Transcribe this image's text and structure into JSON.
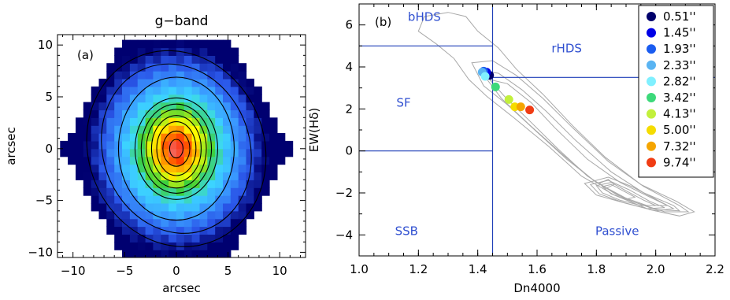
{
  "chart_data": [
    {
      "type": "heatmap",
      "panel_label": "(a)",
      "title": "g−band",
      "xlabel": "arcsec",
      "ylabel": "arcsec",
      "xlim": [
        -11.5,
        12.5
      ],
      "ylim": [
        -10.5,
        11
      ],
      "xticks": [
        -10,
        -5,
        0,
        5,
        10
      ],
      "yticks": [
        -10,
        -5,
        0,
        5,
        10
      ],
      "map": {
        "center": [
          0,
          0
        ],
        "hexagon_extent_arcsec": 10.5,
        "colormap": [
          "#ffffff",
          "#f08080",
          "#ff2a00",
          "#ff8c00",
          "#ffff00",
          "#3ccf3c",
          "#3cd9ff",
          "#3a9bff",
          "#2a55e8",
          "#000070"
        ],
        "peak_value": 1.0,
        "scale_length_arcsec": 3.6
      },
      "contours": [
        {
          "a": 0.65,
          "b": 0.9
        },
        {
          "a": 1.3,
          "b": 1.7
        },
        {
          "a": 1.9,
          "b": 2.6
        },
        {
          "a": 2.4,
          "b": 3.2
        },
        {
          "a": 2.9,
          "b": 3.8
        },
        {
          "a": 3.4,
          "b": 4.3
        },
        {
          "a": 4.0,
          "b": 4.9
        },
        {
          "a": 5.6,
          "b": 6.9
        },
        {
          "a": 7.1,
          "b": 8.3,
          "angle": -20
        },
        {
          "a": 8.5,
          "b": 9.6,
          "angle": -22
        }
      ]
    },
    {
      "type": "scatter",
      "panel_label": "(b)",
      "xlabel": "Dn4000",
      "ylabel": "EW(Hδ)",
      "xlim": [
        1.0,
        2.2
      ],
      "ylim": [
        -5,
        7
      ],
      "xticks": [
        "1.0",
        "1.2",
        "1.4",
        "1.6",
        "1.8",
        "2.0",
        "2.2"
      ],
      "yticks": [
        "−4",
        "−2",
        "0",
        "2",
        "4",
        "6"
      ],
      "region_labels": [
        {
          "text": "bHDS",
          "x": 1.22,
          "y": 6.2
        },
        {
          "text": "rHDS",
          "x": 1.7,
          "y": 4.7
        },
        {
          "text": "SF",
          "x": 1.15,
          "y": 2.1
        },
        {
          "text": "SSB",
          "x": 1.16,
          "y": -4.0
        },
        {
          "text": "Passive",
          "x": 1.87,
          "y": -4.0
        }
      ],
      "dividers": [
        {
          "x": [
            1.45,
            1.45
          ],
          "y": [
            -5,
            7
          ]
        },
        {
          "x": [
            1.0,
            1.45
          ],
          "y": [
            5.0,
            5.0
          ]
        },
        {
          "x": [
            1.45,
            2.2
          ],
          "y": [
            3.5,
            3.5
          ]
        },
        {
          "x": [
            1.0,
            1.45
          ],
          "y": [
            0.0,
            0.0
          ]
        }
      ],
      "density_contours": [
        {
          "points": [
            [
              1.22,
              6.4
            ],
            [
              1.3,
              6.6
            ],
            [
              1.36,
              6.4
            ],
            [
              1.4,
              5.7
            ],
            [
              1.47,
              4.9
            ],
            [
              1.53,
              3.9
            ],
            [
              1.62,
              2.7
            ],
            [
              1.72,
              1.2
            ],
            [
              1.83,
              -0.3
            ],
            [
              1.95,
              -1.6
            ],
            [
              2.07,
              -2.4
            ],
            [
              2.13,
              -2.9
            ],
            [
              2.08,
              -3.1
            ],
            [
              1.98,
              -2.8
            ],
            [
              1.86,
              -2.1
            ],
            [
              1.75,
              -1.2
            ],
            [
              1.64,
              0.2
            ],
            [
              1.52,
              1.6
            ],
            [
              1.43,
              2.6
            ],
            [
              1.37,
              3.4
            ],
            [
              1.32,
              4.4
            ],
            [
              1.26,
              5.1
            ],
            [
              1.2,
              5.7
            ],
            [
              1.22,
              6.4
            ]
          ]
        },
        {
          "points": [
            [
              1.38,
              4.2
            ],
            [
              1.45,
              4.3
            ],
            [
              1.53,
              3.6
            ],
            [
              1.62,
              2.5
            ],
            [
              1.72,
              1.1
            ],
            [
              1.84,
              -0.5
            ],
            [
              1.96,
              -1.7
            ],
            [
              2.08,
              -2.6
            ],
            [
              2.11,
              -2.9
            ],
            [
              2.03,
              -2.9
            ],
            [
              1.92,
              -2.4
            ],
            [
              1.8,
              -1.5
            ],
            [
              1.7,
              -0.4
            ],
            [
              1.6,
              0.9
            ],
            [
              1.5,
              2.2
            ],
            [
              1.42,
              3.1
            ],
            [
              1.38,
              4.2
            ]
          ]
        },
        {
          "points": [
            [
              1.41,
              3.8
            ],
            [
              1.47,
              3.7
            ],
            [
              1.55,
              2.9
            ],
            [
              1.63,
              1.9
            ],
            [
              1.73,
              0.5
            ],
            [
              1.85,
              -1.0
            ],
            [
              1.96,
              -2.0
            ],
            [
              2.06,
              -2.6
            ],
            [
              2.08,
              -2.85
            ],
            [
              2.0,
              -2.8
            ],
            [
              1.9,
              -2.3
            ],
            [
              1.79,
              -1.4
            ],
            [
              1.68,
              -0.1
            ],
            [
              1.57,
              1.3
            ],
            [
              1.48,
              2.5
            ],
            [
              1.41,
              3.8
            ]
          ]
        },
        {
          "points": [
            [
              1.44,
              3.4
            ],
            [
              1.5,
              3.2
            ],
            [
              1.58,
              2.3
            ],
            [
              1.66,
              1.1
            ],
            [
              1.77,
              -0.4
            ],
            [
              1.88,
              -1.5
            ],
            [
              1.98,
              -2.2
            ],
            [
              2.04,
              -2.6
            ],
            [
              1.97,
              -2.6
            ],
            [
              1.87,
              -2.1
            ],
            [
              1.77,
              -1.2
            ],
            [
              1.67,
              0.1
            ],
            [
              1.57,
              1.5
            ],
            [
              1.49,
              2.6
            ],
            [
              1.44,
              3.4
            ]
          ]
        },
        {
          "points": [
            [
              1.76,
              -1.55
            ],
            [
              1.84,
              -1.25
            ],
            [
              1.92,
              -1.7
            ],
            [
              2.0,
              -2.3
            ],
            [
              2.06,
              -2.75
            ],
            [
              2.0,
              -2.85
            ],
            [
              1.9,
              -2.5
            ],
            [
              1.8,
              -2.1
            ],
            [
              1.76,
              -1.55
            ]
          ]
        },
        {
          "points": [
            [
              1.78,
              -1.6
            ],
            [
              1.84,
              -1.4
            ],
            [
              1.91,
              -1.85
            ],
            [
              1.98,
              -2.4
            ],
            [
              2.03,
              -2.7
            ],
            [
              1.97,
              -2.75
            ],
            [
              1.89,
              -2.45
            ],
            [
              1.81,
              -2.05
            ],
            [
              1.78,
              -1.6
            ]
          ]
        },
        {
          "points": [
            [
              1.8,
              -1.65
            ],
            [
              1.85,
              -1.5
            ],
            [
              1.9,
              -1.9
            ],
            [
              1.96,
              -2.35
            ],
            [
              2.0,
              -2.6
            ],
            [
              1.95,
              -2.6
            ],
            [
              1.88,
              -2.35
            ],
            [
              1.82,
              -2.0
            ],
            [
              1.8,
              -1.65
            ]
          ]
        },
        {
          "points": [
            [
              1.82,
              -1.7
            ],
            [
              1.85,
              -1.6
            ],
            [
              1.89,
              -1.9
            ],
            [
              1.93,
              -2.2
            ],
            [
              1.9,
              -2.3
            ],
            [
              1.85,
              -2.05
            ],
            [
              1.82,
              -1.7
            ]
          ]
        },
        {
          "points": [
            [
              1.81,
              -1.55
            ],
            [
              1.84,
              -1.35
            ],
            [
              1.86,
              -1.6
            ],
            [
              1.83,
              -1.8
            ],
            [
              1.81,
              -1.55
            ]
          ]
        }
      ],
      "series": [
        {
          "name": "0.51''",
          "color": "#00006b",
          "x": 1.44,
          "y": 3.6
        },
        {
          "name": "1.45''",
          "color": "#0000e6",
          "x": 1.43,
          "y": 3.75
        },
        {
          "name": "1.93''",
          "color": "#1a5cf0",
          "x": 1.42,
          "y": 3.8
        },
        {
          "name": "2.33''",
          "color": "#5ab4f2",
          "x": 1.415,
          "y": 3.75
        },
        {
          "name": "2.82''",
          "color": "#80f0ff",
          "x": 1.425,
          "y": 3.55
        },
        {
          "name": "3.42''",
          "color": "#3cd97a",
          "x": 1.46,
          "y": 3.05
        },
        {
          "name": "4.13''",
          "color": "#c2f03c",
          "x": 1.505,
          "y": 2.45
        },
        {
          "name": "5.00''",
          "color": "#f5dc00",
          "x": 1.525,
          "y": 2.1
        },
        {
          "name": "7.32''",
          "color": "#f5a500",
          "x": 1.545,
          "y": 2.1
        },
        {
          "name": "9.74''",
          "color": "#f03c14",
          "x": 1.575,
          "y": 1.95
        }
      ],
      "legend_position": "top-right"
    }
  ]
}
